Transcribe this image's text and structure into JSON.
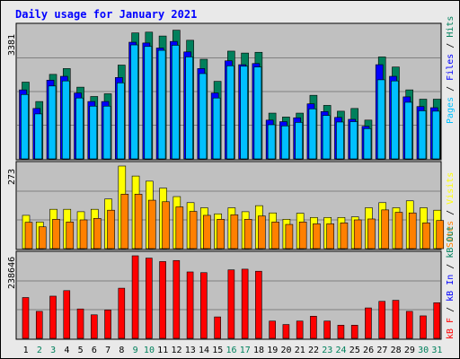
{
  "title": "Daily usage for January 2021",
  "colors": {
    "background": "#e9e9e9",
    "panel": "#c0c0c0",
    "title_text": "#0000ff",
    "weekday_label": "#000000",
    "weekend_label": "#00805c",
    "hits": "#00805c",
    "files": "#0000ff",
    "pages": "#00c0ff",
    "visits": "#ffff00",
    "sites": "#ff8000",
    "kb_in": "#0000ff",
    "kb_out": "#00805c",
    "kb_f": "#ff0000"
  },
  "chart_data": [
    {
      "type": "bar",
      "title": "Daily usage for January 2021",
      "ymax_label": "3381",
      "ylim": [
        0,
        3381
      ],
      "legend": [
        {
          "text": "Pages",
          "color_key": "pages"
        },
        {
          "text": "Files",
          "color_key": "files"
        },
        {
          "text": "Hits",
          "color_key": "hits"
        }
      ],
      "categories": [
        "1",
        "2",
        "3",
        "4",
        "5",
        "6",
        "7",
        "8",
        "9",
        "10",
        "11",
        "12",
        "13",
        "14",
        "15",
        "16",
        "17",
        "18",
        "19",
        "20",
        "21",
        "22",
        "23",
        "24",
        "25",
        "26",
        "27",
        "28",
        "29",
        "30",
        "31"
      ],
      "weekend_days": [
        2,
        3,
        9,
        10,
        16,
        17,
        23,
        24,
        30,
        31
      ],
      "series": [
        {
          "name": "Hits",
          "color_key": "hits",
          "values": [
            1980,
            1480,
            2180,
            2330,
            1850,
            1610,
            1680,
            2420,
            3250,
            3270,
            3170,
            3320,
            3060,
            2570,
            2000,
            2780,
            2730,
            2750,
            1180,
            1080,
            1180,
            1640,
            1380,
            1230,
            1300,
            1000,
            2630,
            2370,
            1780,
            1540,
            1540
          ]
        },
        {
          "name": "Files",
          "color_key": "files",
          "values": [
            1780,
            1300,
            2030,
            2130,
            1700,
            1480,
            1480,
            2100,
            3010,
            2990,
            2860,
            3030,
            2760,
            2330,
            1700,
            2530,
            2430,
            2460,
            1000,
            960,
            1060,
            1420,
            1220,
            1070,
            1020,
            840,
            2430,
            2130,
            1600,
            1350,
            1320
          ]
        },
        {
          "name": "Pages",
          "color_key": "pages",
          "values": [
            1660,
            1160,
            1880,
            2010,
            1570,
            1360,
            1360,
            1960,
            2940,
            2900,
            2800,
            2930,
            2630,
            2200,
            1570,
            2400,
            2390,
            2370,
            880,
            850,
            940,
            1290,
            1120,
            950,
            960,
            780,
            2040,
            2010,
            1460,
            1240,
            1230
          ]
        }
      ]
    },
    {
      "type": "bar",
      "ymax_label": "273",
      "ylim": [
        0,
        273
      ],
      "legend": [
        {
          "text": "Sites",
          "color_key": "sites"
        },
        {
          "text": "Visits",
          "color_key": "visits"
        }
      ],
      "categories": [
        "1",
        "2",
        "3",
        "4",
        "5",
        "6",
        "7",
        "8",
        "9",
        "10",
        "11",
        "12",
        "13",
        "14",
        "15",
        "16",
        "17",
        "18",
        "19",
        "20",
        "21",
        "22",
        "23",
        "24",
        "25",
        "26",
        "27",
        "28",
        "29",
        "30",
        "31"
      ],
      "series": [
        {
          "name": "Visits",
          "color_key": "visits",
          "values": [
            110,
            88,
            130,
            130,
            122,
            130,
            164,
            273,
            240,
            223,
            200,
            172,
            152,
            135,
            115,
            135,
            122,
            142,
            118,
            97,
            117,
            103,
            103,
            103,
            105,
            135,
            152,
            135,
            158,
            135,
            127
          ]
        },
        {
          "name": "Sites",
          "color_key": "sites",
          "values": [
            87,
            72,
            97,
            88,
            95,
            100,
            127,
            180,
            180,
            160,
            155,
            138,
            123,
            110,
            97,
            112,
            97,
            108,
            88,
            80,
            88,
            82,
            82,
            85,
            95,
            98,
            128,
            120,
            118,
            85,
            93
          ]
        }
      ]
    },
    {
      "type": "bar",
      "ymax_label": "238646",
      "ylim": [
        0,
        238646
      ],
      "legend": [
        {
          "text": "kB F",
          "color_key": "kb_f"
        },
        {
          "text": "kB In",
          "color_key": "kb_in"
        },
        {
          "text": "kB Out",
          "color_key": "kb_out"
        }
      ],
      "categories": [
        "1",
        "2",
        "3",
        "4",
        "5",
        "6",
        "7",
        "8",
        "9",
        "10",
        "11",
        "12",
        "13",
        "14",
        "15",
        "16",
        "17",
        "18",
        "19",
        "20",
        "21",
        "22",
        "23",
        "24",
        "25",
        "26",
        "27",
        "28",
        "29",
        "30",
        "31"
      ],
      "series": [
        {
          "name": "kB F",
          "color_key": "kb_f",
          "values": [
            118000,
            78000,
            122000,
            138000,
            85000,
            68000,
            82000,
            145000,
            238646,
            232000,
            222000,
            225000,
            192000,
            190000,
            62000,
            198000,
            200000,
            194000,
            50000,
            40000,
            50000,
            64000,
            50000,
            38000,
            38000,
            88000,
            107000,
            110000,
            78000,
            65000,
            103000
          ]
        }
      ]
    }
  ]
}
